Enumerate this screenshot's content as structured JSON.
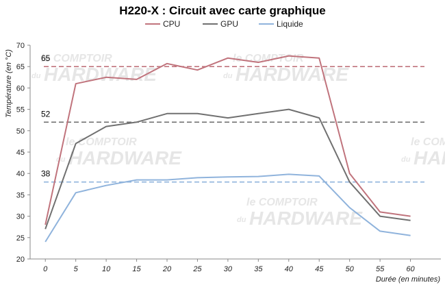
{
  "chart_data": {
    "type": "line",
    "title": "H220-X : Circuit avec carte graphique",
    "xlabel": "Durée  (en minutes)",
    "ylabel": "Température  (en  °C)",
    "x": [
      0,
      5,
      10,
      15,
      20,
      25,
      30,
      35,
      40,
      45,
      50,
      55,
      60
    ],
    "ylim": [
      20,
      70
    ],
    "yticks": [
      20,
      25,
      30,
      35,
      40,
      45,
      50,
      55,
      60,
      65,
      70
    ],
    "grid": false,
    "legend_position": "top",
    "series": [
      {
        "name": "CPU",
        "color": "#c0737c",
        "values": [
          28,
          61,
          62.5,
          62,
          65.7,
          64.2,
          67,
          66,
          67.5,
          67,
          40,
          31,
          30
        ]
      },
      {
        "name": "GPU",
        "color": "#707070",
        "values": [
          27,
          47,
          51,
          52,
          54,
          54,
          53,
          54,
          55,
          53,
          38,
          30,
          29
        ]
      },
      {
        "name": "Liquide",
        "color": "#8fb3dc",
        "values": [
          24,
          35.5,
          37.2,
          38.5,
          38.5,
          39,
          39.2,
          39.3,
          39.8,
          39.4,
          32,
          26.5,
          25.5
        ]
      }
    ],
    "reference_lines": [
      {
        "value": 65,
        "label": "65",
        "color": "#c0737c"
      },
      {
        "value": 52,
        "label": "52",
        "color": "#707070"
      },
      {
        "value": 38,
        "label": "38",
        "color": "#8fb3dc"
      }
    ]
  },
  "watermarks": [
    {
      "line1": "le COMPTOIR",
      "prefix": "du",
      "line2": "HARDWARE"
    },
    {
      "line1": "le COMPTOIR",
      "prefix": "du",
      "line2": "HARDWARE"
    },
    {
      "line1": "le COMPTOIR",
      "prefix": "du",
      "line2": "HARDWARE"
    },
    {
      "line1": "le COMPTOIR",
      "prefix": "du",
      "line2": "HARDWARE"
    },
    {
      "line1": "le COMPTOIR",
      "prefix": "du",
      "line2": "HARDWARE"
    }
  ]
}
